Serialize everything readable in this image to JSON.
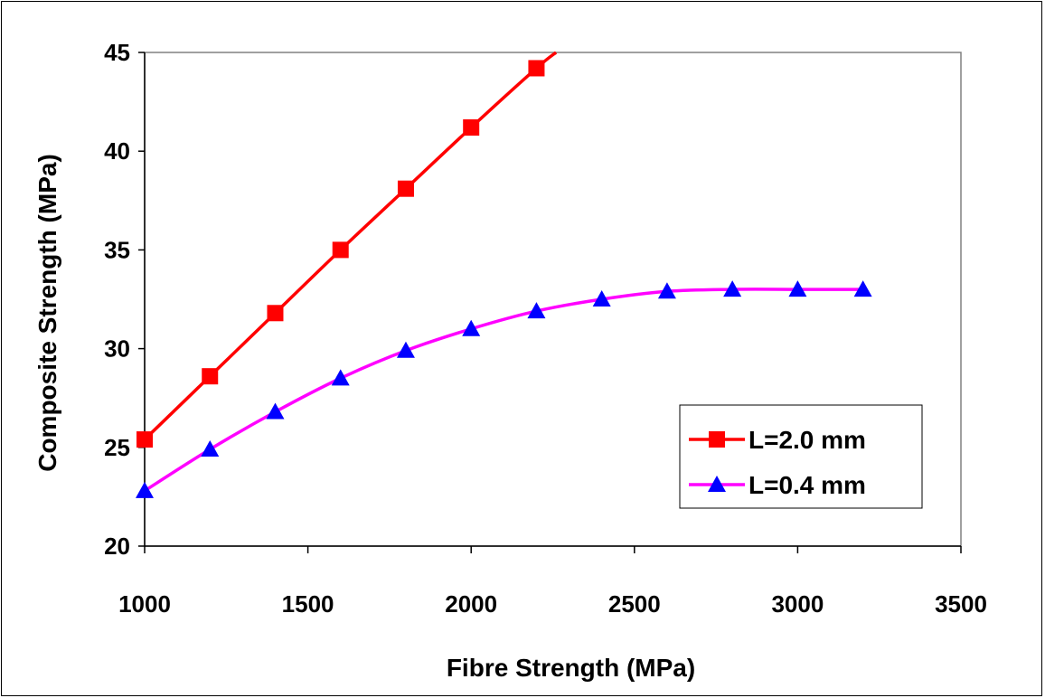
{
  "chart_data": {
    "type": "line",
    "title": "",
    "xlabel": "Fibre Strength (MPa)",
    "ylabel": "Composite Strength (MPa)",
    "xlim": [
      1000,
      3500
    ],
    "ylim": [
      20,
      45
    ],
    "xticks": [
      1000,
      1500,
      2000,
      2500,
      3000,
      3500
    ],
    "yticks": [
      20,
      25,
      30,
      35,
      40,
      45
    ],
    "grid": false,
    "legend_position": "bottom-right",
    "series": [
      {
        "name": "L=2.0 mm",
        "color": "#ff0000",
        "marker_color": "#ff0000",
        "marker": "square",
        "x": [
          1000,
          1200,
          1400,
          1600,
          1800,
          2000,
          2200,
          2260
        ],
        "y": [
          25.4,
          28.6,
          31.8,
          35.0,
          38.1,
          41.2,
          44.2,
          45.0
        ],
        "marked": [
          true,
          true,
          true,
          true,
          true,
          true,
          true,
          false
        ]
      },
      {
        "name": "L=0.4 mm",
        "color": "#ff00ff",
        "marker_color": "#0000ff",
        "marker": "triangle",
        "x": [
          1000,
          1200,
          1400,
          1600,
          1800,
          2000,
          2200,
          2400,
          2600,
          2800,
          3000,
          3200
        ],
        "y": [
          22.8,
          24.9,
          26.8,
          28.5,
          29.9,
          31.0,
          31.9,
          32.5,
          32.9,
          33.0,
          33.0,
          33.0
        ],
        "marked": [
          true,
          true,
          true,
          true,
          true,
          true,
          true,
          true,
          true,
          true,
          true,
          true
        ]
      }
    ]
  }
}
